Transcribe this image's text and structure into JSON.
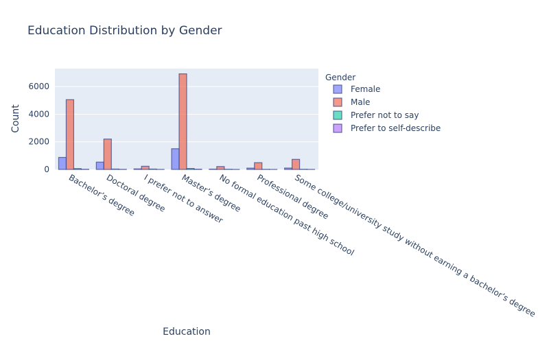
{
  "chart_data": {
    "type": "bar",
    "title": "Education Distribution by Gender",
    "xlabel": "Education",
    "ylabel": "Count",
    "ylim": [
      0,
      7300
    ],
    "yticks": [
      0,
      2000,
      4000,
      6000
    ],
    "ytick_labels": [
      "0",
      "2000",
      "4000",
      "6000"
    ],
    "grid": true,
    "legend_title": "Gender",
    "legend_position": "top-right",
    "categories": [
      "Bachelor’s degree",
      "Doctoral degree",
      "I prefer not to answer",
      "Master’s degree",
      "No formal education past high school",
      "Professional degree",
      "Some college/university study without earning a bachelor’s degree"
    ],
    "series": [
      {
        "name": "Female",
        "color": "#636efa",
        "values": [
          870,
          530,
          40,
          1500,
          25,
          95,
          100
        ]
      },
      {
        "name": "Male",
        "color": "#ef553b",
        "values": [
          5050,
          2200,
          230,
          6920,
          210,
          490,
          730
        ]
      },
      {
        "name": "Prefer not to say",
        "color": "#00cc96",
        "values": [
          60,
          30,
          30,
          70,
          15,
          10,
          15
        ]
      },
      {
        "name": "Prefer to self-describe",
        "color": "#ab63fa",
        "values": [
          15,
          10,
          5,
          20,
          5,
          3,
          5
        ]
      }
    ]
  }
}
